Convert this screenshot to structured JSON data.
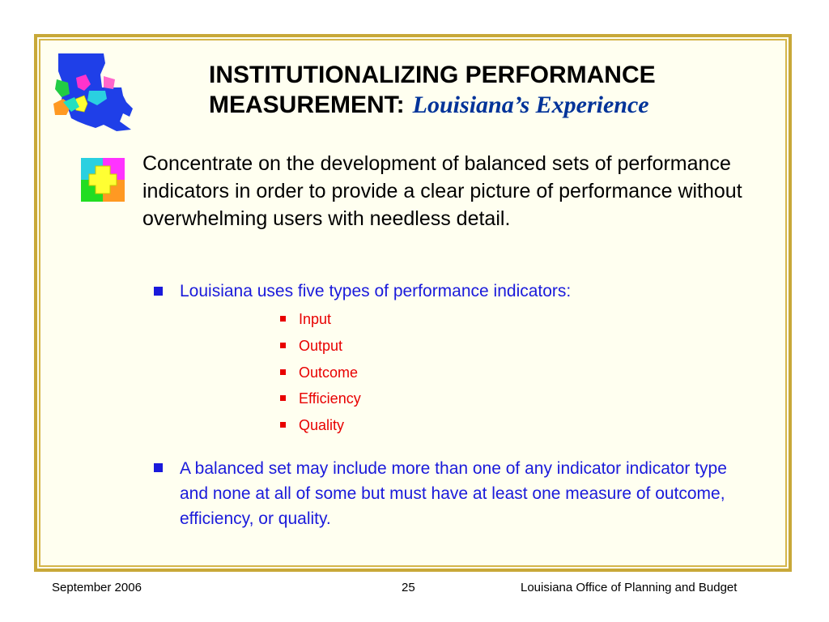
{
  "header": {
    "title_main": "INSTITUTIONALIZING PERFORMANCE MEASUREMENT:",
    "title_sub": "Louisiana’s Experience"
  },
  "icons": {
    "logo": "louisiana-puzzle-map-logo",
    "bullet_icon": "puzzle-pieces-icon"
  },
  "content": {
    "lead": "Concentrate on the development of balanced sets of performance indicators in order to provide a clear picture of performance without overwhelming users with needless detail.",
    "bullet1": "Louisiana uses five types of performance indicators:",
    "indicator_types": [
      "Input",
      "Output",
      "Outcome",
      "Efficiency",
      "Quality"
    ],
    "bullet2": "A balanced set may include more than one of any indicator indicator type and none at all of some but must have at least one measure of outcome, efficiency, or quality."
  },
  "footer": {
    "date": "September 2006",
    "page": "25",
    "org": "Louisiana Office of Planning and Budget"
  },
  "colors": {
    "frame": "#c8a838",
    "background": "#fffff0",
    "bullet_text": "#1a1adb",
    "sub_bullet_text": "#e80000",
    "title_sub": "#003399"
  }
}
